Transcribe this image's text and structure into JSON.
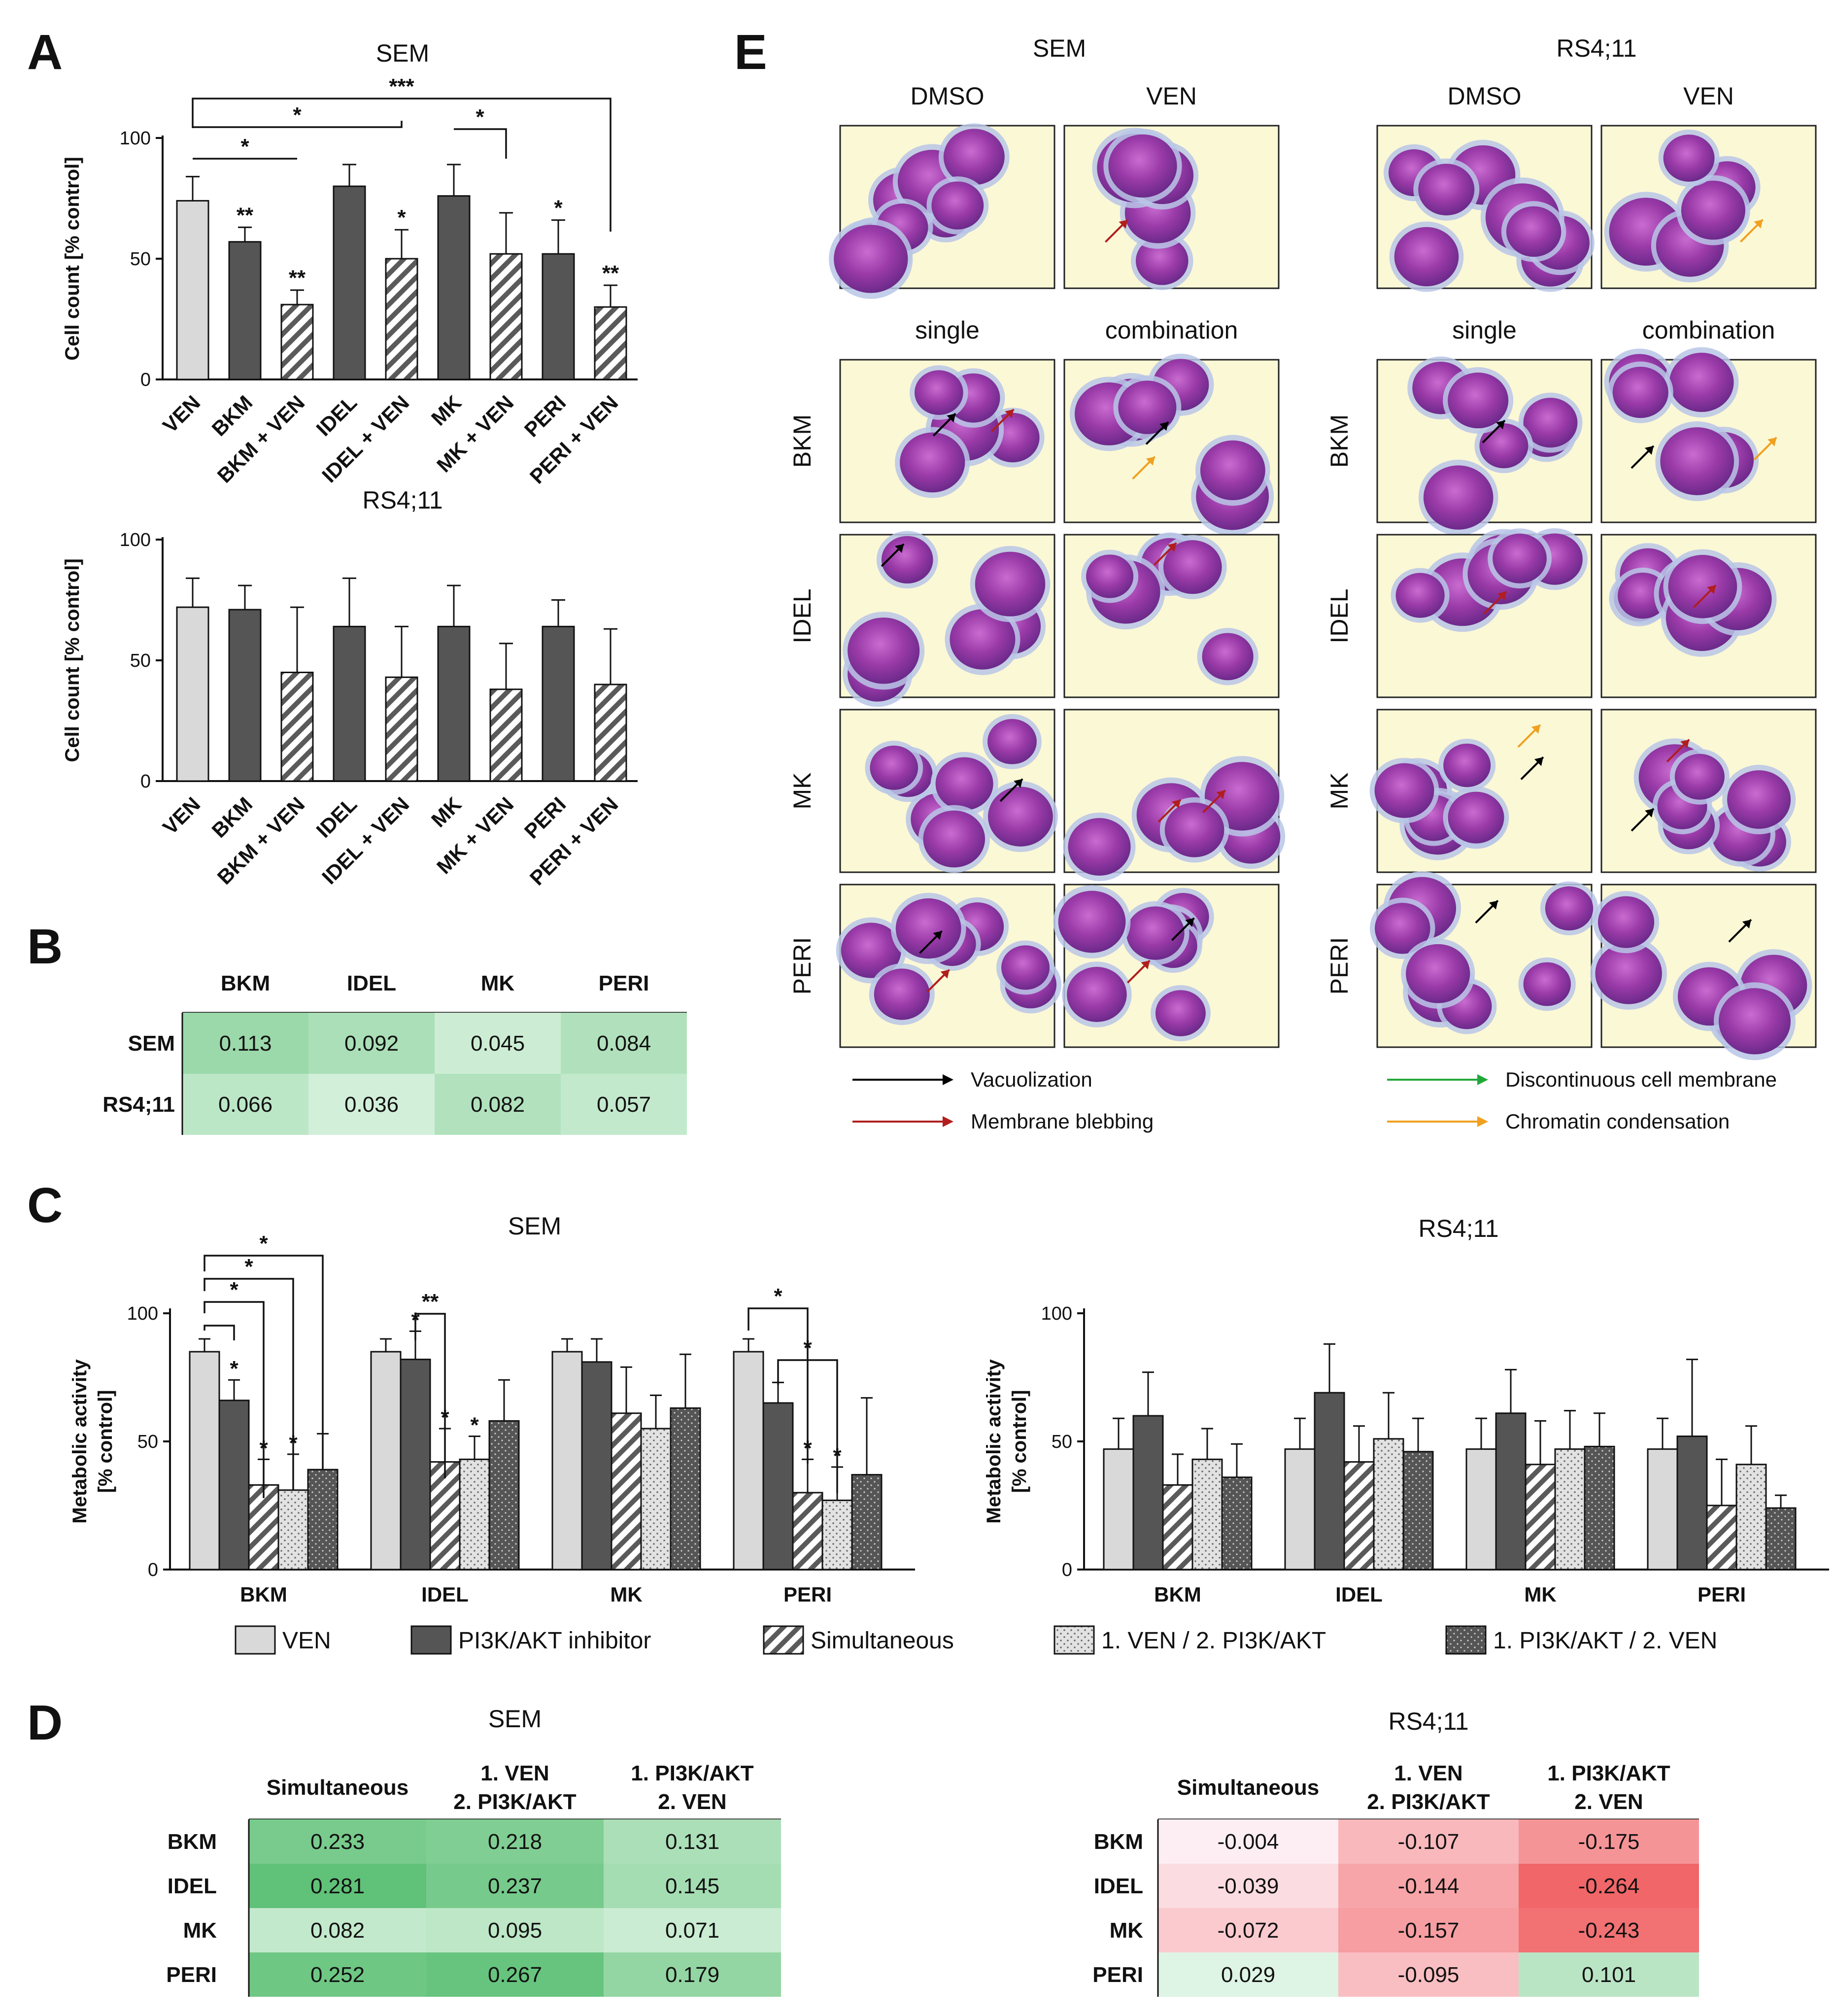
{
  "panel_letters": {
    "A": "A",
    "B": "B",
    "C": "C",
    "D": "D",
    "E": "E"
  },
  "colors": {
    "light_gray": "#d9d9d9",
    "dark_gray": "#555555",
    "green_heat": "#5cbf74",
    "red_heat": "#f0585a"
  },
  "chart_data": [
    {
      "id": "A_SEM",
      "type": "bar",
      "title": "SEM",
      "ylabel": "Cell count [% control]",
      "ylim": [
        0,
        100
      ],
      "yticks": [
        "0",
        "50",
        "100"
      ],
      "categories": [
        "VEN",
        "BKM",
        "BKM + VEN",
        "IDEL",
        "IDEL + VEN",
        "MK",
        "MK + VEN",
        "PERI",
        "PERI + VEN"
      ],
      "values": [
        74,
        57,
        31,
        80,
        50,
        76,
        52,
        52,
        30
      ],
      "errors": [
        10,
        6,
        6,
        9,
        12,
        13,
        17,
        14,
        9
      ],
      "styles": [
        "light",
        "dark",
        "hatch",
        "dark",
        "hatch",
        "dark",
        "hatch",
        "dark",
        "hatch"
      ],
      "stars": [
        "",
        "**",
        "**",
        "",
        "*",
        "",
        "",
        "*",
        "**"
      ],
      "brackets": [
        {
          "from": 0,
          "to": 8,
          "label": "***"
        },
        {
          "from": 0,
          "to": 4,
          "label": "*"
        },
        {
          "from": 0,
          "to": 2,
          "label": "*"
        },
        {
          "from": 5,
          "to": 6,
          "label": "*"
        }
      ]
    },
    {
      "id": "A_RS4",
      "type": "bar",
      "title": "RS4;11",
      "ylabel": "Cell count [% control]",
      "ylim": [
        0,
        100
      ],
      "yticks": [
        "0",
        "50",
        "100"
      ],
      "categories": [
        "VEN",
        "BKM",
        "BKM + VEN",
        "IDEL",
        "IDEL + VEN",
        "MK",
        "MK + VEN",
        "PERI",
        "PERI + VEN"
      ],
      "values": [
        72,
        71,
        45,
        64,
        43,
        64,
        38,
        64,
        40
      ],
      "errors": [
        12,
        10,
        27,
        20,
        21,
        17,
        19,
        11,
        23
      ],
      "styles": [
        "light",
        "dark",
        "hatch",
        "dark",
        "hatch",
        "dark",
        "hatch",
        "dark",
        "hatch"
      ],
      "stars": [
        "",
        "",
        "",
        "",
        "",
        "",
        "",
        "",
        ""
      ],
      "brackets": []
    },
    {
      "id": "B",
      "type": "table",
      "columns": [
        "BKM",
        "IDEL",
        "MK",
        "PERI"
      ],
      "rows": [
        {
          "label": "SEM",
          "values": [
            "0.113",
            "0.092",
            "0.045",
            "0.084"
          ],
          "num": [
            0.113,
            0.092,
            0.045,
            0.084
          ]
        },
        {
          "label": "RS4;11",
          "values": [
            "0.066",
            "0.036",
            "0.082",
            "0.057"
          ],
          "num": [
            0.066,
            0.036,
            0.082,
            0.057
          ]
        }
      ]
    },
    {
      "id": "C_SEM",
      "type": "bar",
      "title": "SEM",
      "ylabel_lines": [
        "Metabolic activity",
        "[% control]"
      ],
      "ylim": [
        0,
        100
      ],
      "yticks": [
        "0",
        "50",
        "100"
      ],
      "groups": [
        "BKM",
        "IDEL",
        "MK",
        "PERI"
      ],
      "series": [
        {
          "name": "VEN",
          "style": "light",
          "values": [
            85,
            85,
            85,
            85
          ],
          "errors": [
            5,
            5,
            5,
            5
          ]
        },
        {
          "name": "PI3K/AKT inhibitor",
          "style": "dark",
          "values": [
            66,
            82,
            81,
            65
          ],
          "errors": [
            8,
            11,
            9,
            8
          ]
        },
        {
          "name": "Simultaneous",
          "style": "hatch",
          "values": [
            33,
            42,
            61,
            30
          ],
          "errors": [
            10,
            13,
            18,
            13
          ]
        },
        {
          "name": "1. VEN /  2. PI3K/AKT",
          "style": "dots",
          "values": [
            31,
            43,
            55,
            27
          ],
          "errors": [
            14,
            9,
            13,
            13
          ]
        },
        {
          "name": "1. PI3K/AKT / 2. VEN",
          "style": "darkdots",
          "values": [
            39,
            58,
            63,
            37
          ],
          "errors": [
            14,
            16,
            21,
            30
          ]
        }
      ],
      "stars": [
        [
          "",
          "*",
          "*",
          "*",
          ""
        ],
        [
          "",
          "*",
          "*",
          "*",
          ""
        ],
        [
          "",
          "",
          "",
          "",
          ""
        ],
        [
          "",
          "",
          "*",
          "*",
          ""
        ]
      ],
      "brackets": [
        {
          "group": 0,
          "from": 0,
          "to": 4,
          "label": "*"
        },
        {
          "group": 0,
          "from": 0,
          "to": 3,
          "label": "*"
        },
        {
          "group": 0,
          "from": 0,
          "to": 2,
          "label": "*"
        },
        {
          "group": 0,
          "from": 0,
          "to": 1,
          "label": ""
        },
        {
          "group": 1,
          "from": 1,
          "to": 2,
          "label": "**"
        },
        {
          "group": 3,
          "from": 0,
          "to": 2,
          "label": "*"
        },
        {
          "group": 3,
          "from": 1,
          "to": 3,
          "label": "*"
        }
      ]
    },
    {
      "id": "C_RS4",
      "type": "bar",
      "title": "RS4;11",
      "ylabel_lines": [
        "Metabolic activity",
        "[% control]"
      ],
      "ylim": [
        0,
        100
      ],
      "yticks": [
        "0",
        "50",
        "100"
      ],
      "groups": [
        "BKM",
        "IDEL",
        "MK",
        "PERI"
      ],
      "series": [
        {
          "name": "VEN",
          "style": "light",
          "values": [
            47,
            47,
            47,
            47
          ],
          "errors": [
            12,
            12,
            12,
            12
          ]
        },
        {
          "name": "PI3K/AKT inhibitor",
          "style": "dark",
          "values": [
            60,
            69,
            61,
            52
          ],
          "errors": [
            17,
            19,
            17,
            30
          ]
        },
        {
          "name": "Simultaneous",
          "style": "hatch",
          "values": [
            33,
            42,
            41,
            25
          ],
          "errors": [
            12,
            14,
            17,
            18
          ]
        },
        {
          "name": "1. VEN /  2. PI3K/AKT",
          "style": "dots",
          "values": [
            43,
            51,
            47,
            41
          ],
          "errors": [
            12,
            18,
            15,
            15
          ]
        },
        {
          "name": "1. PI3K/AKT / 2. VEN",
          "style": "darkdots",
          "values": [
            36,
            46,
            48,
            24
          ],
          "errors": [
            13,
            13,
            13,
            5
          ]
        }
      ]
    },
    {
      "id": "D_SEM",
      "type": "table",
      "title": "SEM",
      "columns": [
        "Simultaneous",
        "1. VEN\n2. PI3K/AKT",
        "1. PI3K/AKT\n2. VEN"
      ],
      "rows": [
        {
          "label": "BKM",
          "values": [
            "0.233",
            "0.218",
            "0.131"
          ],
          "num": [
            0.233,
            0.218,
            0.131
          ]
        },
        {
          "label": "IDEL",
          "values": [
            "0.281",
            "0.237",
            "0.145"
          ],
          "num": [
            0.281,
            0.237,
            0.145
          ]
        },
        {
          "label": "MK",
          "values": [
            "0.082",
            "0.095",
            "0.071"
          ],
          "num": [
            0.082,
            0.095,
            0.071
          ]
        },
        {
          "label": "PERI",
          "values": [
            "0.252",
            "0.267",
            "0.179"
          ],
          "num": [
            0.252,
            0.267,
            0.179
          ]
        }
      ]
    },
    {
      "id": "D_RS4",
      "type": "table",
      "title": "RS4;11",
      "columns": [
        "Simultaneous",
        "1. VEN\n2. PI3K/AKT",
        "1. PI3K/AKT\n2. VEN"
      ],
      "rows": [
        {
          "label": "BKM",
          "values": [
            "-0.004",
            "-0.107",
            "-0.175"
          ],
          "num": [
            -0.004,
            -0.107,
            -0.175
          ]
        },
        {
          "label": "IDEL",
          "values": [
            "-0.039",
            "-0.144",
            "-0.264"
          ],
          "num": [
            -0.039,
            -0.144,
            -0.264
          ]
        },
        {
          "label": "MK",
          "values": [
            "-0.072",
            "-0.157",
            "-0.243"
          ],
          "num": [
            -0.072,
            -0.157,
            -0.243
          ]
        },
        {
          "label": "PERI",
          "values": [
            "0.029",
            "-0.095",
            "0.101"
          ],
          "num": [
            0.029,
            -0.095,
            0.101
          ]
        }
      ]
    }
  ],
  "legend_C": [
    "VEN",
    "PI3K/AKT inhibitor",
    "Simultaneous",
    "1. VEN /  2. PI3K/AKT",
    "1. PI3K/AKT / 2. VEN"
  ],
  "micrographs": {
    "titles": {
      "left": "SEM",
      "right": "RS4;11"
    },
    "top_cols": [
      "DMSO",
      "VEN"
    ],
    "mid_cols": [
      "single",
      "combination"
    ],
    "row_labels": [
      "BKM",
      "IDEL",
      "MK",
      "PERI"
    ],
    "arrow_legend": [
      {
        "label": "Vacuolization",
        "color": "#000000"
      },
      {
        "label": "Membrane blebbing",
        "color": "#b01e1e"
      },
      {
        "label": "Discontinuous cell membrane",
        "color": "#22a83a"
      },
      {
        "label": "Chromatin condensation",
        "color": "#f0a020"
      }
    ]
  }
}
